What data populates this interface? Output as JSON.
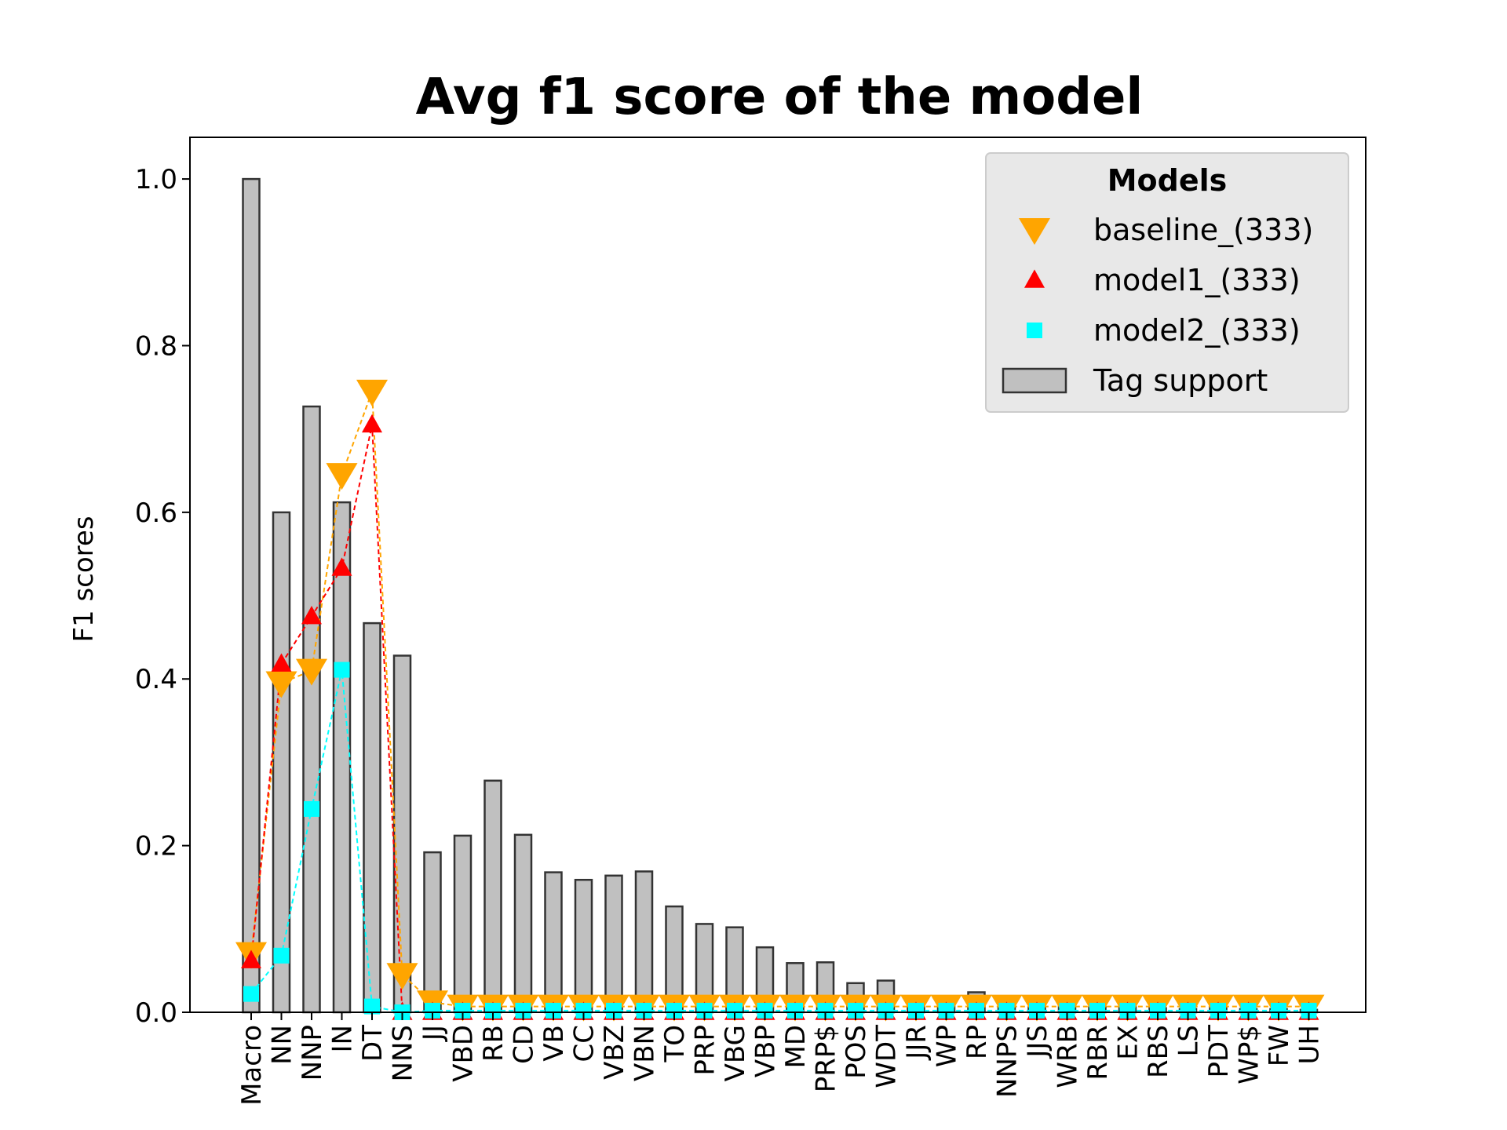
{
  "chart_data": {
    "type": "bar",
    "title": "Avg f1 score of the model",
    "xlabel": "",
    "ylabel": "F1 scores",
    "ylim": [
      0,
      1.05
    ],
    "yticks": [
      "0.0",
      "0.2",
      "0.4",
      "0.6",
      "0.8",
      "1.0"
    ],
    "grid": false,
    "legend_placement": "top-right",
    "legend_title": "Models",
    "categories": [
      "Macro",
      "NN",
      "NNP",
      "IN",
      "DT",
      "NNS",
      "JJ",
      "VBD",
      "RB",
      "CD",
      "VB",
      "CC",
      "VBZ",
      "VBN",
      "TO",
      "PRP",
      "VBG",
      "VBP",
      "MD",
      "PRP$",
      "POS",
      "WDT",
      "JJR",
      "WP",
      "RP",
      "NNPS",
      "JJS",
      "WRB",
      "RBR",
      "EX",
      "RBS",
      "LS",
      "PDT",
      "WP$",
      "FW",
      "UH"
    ],
    "bars": {
      "name": "Tag support",
      "color": "#c0c0c0",
      "edge_color": "#333333",
      "values": [
        1.0,
        0.6,
        0.727,
        0.612,
        0.467,
        0.428,
        0.192,
        0.212,
        0.278,
        0.213,
        0.168,
        0.159,
        0.164,
        0.169,
        0.127,
        0.106,
        0.102,
        0.078,
        0.059,
        0.06,
        0.035,
        0.038,
        0.018,
        0.008,
        0.024,
        0.008,
        0.006,
        0.008,
        0.006,
        0.008,
        0.005,
        0.004,
        0.005,
        0.004,
        0.004,
        0.003
      ]
    },
    "series": [
      {
        "name": "baseline_(333)",
        "marker": "triangle-down",
        "color": "#ffa500",
        "values": [
          0.07,
          0.395,
          0.41,
          0.645,
          0.745,
          0.045,
          0.012,
          0.007,
          0.007,
          0.007,
          0.007,
          0.007,
          0.007,
          0.007,
          0.007,
          0.007,
          0.007,
          0.007,
          0.007,
          0.007,
          0.007,
          0.007,
          0.007,
          0.007,
          0.007,
          0.007,
          0.007,
          0.007,
          0.007,
          0.007,
          0.007,
          0.007,
          0.007,
          0.007,
          0.007,
          0.007
        ]
      },
      {
        "name": "model1_(333)",
        "marker": "triangle-up",
        "color": "#ff0000",
        "values": [
          0.062,
          0.418,
          0.475,
          0.533,
          0.705,
          0.0,
          0.0,
          0.0,
          0.0,
          0.0,
          0.0,
          0.0,
          0.0,
          0.0,
          0.0,
          0.0,
          0.0,
          0.0,
          0.0,
          0.0,
          0.0,
          0.0,
          0.0,
          0.0,
          0.0,
          0.0,
          0.0,
          0.0,
          0.0,
          0.0,
          0.0,
          0.0,
          0.0,
          0.0,
          0.0,
          0.0
        ]
      },
      {
        "name": "model2_(333)",
        "marker": "square",
        "color": "#00ffff",
        "values": [
          0.022,
          0.068,
          0.244,
          0.411,
          0.007,
          0.0,
          0.002,
          0.002,
          0.002,
          0.002,
          0.002,
          0.002,
          0.002,
          0.002,
          0.002,
          0.002,
          0.002,
          0.002,
          0.002,
          0.002,
          0.002,
          0.002,
          0.002,
          0.002,
          0.002,
          0.002,
          0.002,
          0.002,
          0.002,
          0.002,
          0.002,
          0.002,
          0.002,
          0.002,
          0.002,
          0.002
        ]
      }
    ]
  }
}
